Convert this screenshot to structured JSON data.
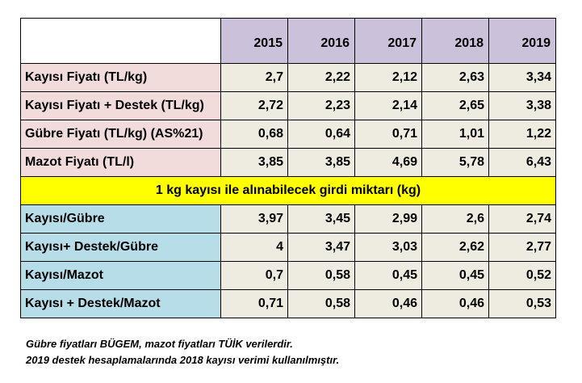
{
  "years": [
    "2015",
    "2016",
    "2017",
    "2018",
    "2019"
  ],
  "price_rows": [
    {
      "label": "Kayısı Fiyatı (TL/kg)",
      "values": [
        "2,7",
        "2,22",
        "2,12",
        "2,63",
        "3,34"
      ]
    },
    {
      "label": "Kayısı Fiyatı + Destek (TL/kg)",
      "values": [
        "2,72",
        "2,23",
        "2,14",
        "2,65",
        "3,38"
      ]
    },
    {
      "label": "Gübre Fiyatı (TL/kg) (AS%21)",
      "values": [
        "0,68",
        "0,64",
        "0,71",
        "1,01",
        "1,22"
      ]
    },
    {
      "label": "Mazot Fiyatı (TL/l)",
      "values": [
        "3,85",
        "3,85",
        "4,69",
        "5,78",
        "6,43"
      ]
    }
  ],
  "band_title": "1 kg kayısı ile alınabilecek girdi miktarı (kg)",
  "ratio_rows": [
    {
      "label": "Kayısı/Gübre",
      "values": [
        "3,97",
        "3,45",
        "2,99",
        "2,6",
        "2,74"
      ]
    },
    {
      "label": "Kayısı+ Destek/Gübre",
      "values": [
        "4",
        "3,47",
        "3,03",
        "2,62",
        "2,77"
      ]
    },
    {
      "label": "Kayısı/Mazot",
      "values": [
        "0,7",
        "0,58",
        "0,45",
        "0,45",
        "0,52"
      ]
    },
    {
      "label": "Kayısı + Destek/Mazot",
      "values": [
        "0,71",
        "0,58",
        "0,46",
        "0,46",
        "0,53"
      ]
    }
  ],
  "notes": [
    "Gübre fiyatları BÜGEM, mazot fiyatları TÜİK verilerdir.",
    "2019 destek hesaplamalarında 2018 kayısı verimi kullanılmıştır."
  ],
  "colors": {
    "header_bg": "#ccc1da",
    "label_pink": "#f2dcdb",
    "label_blue": "#b7dee8",
    "value_bg": "#eeece1",
    "band_bg": "#ffff00"
  }
}
